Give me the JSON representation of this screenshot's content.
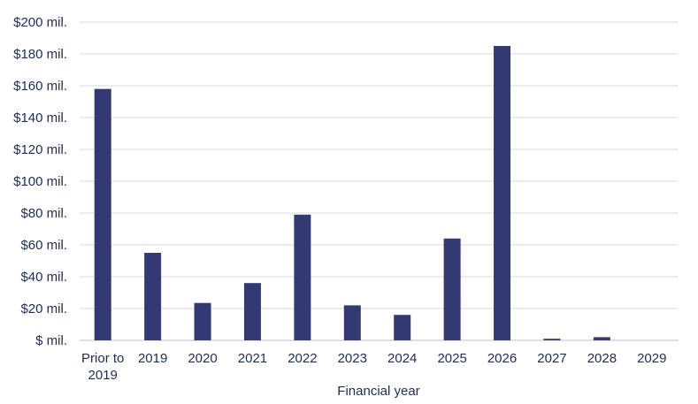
{
  "chart_data": {
    "type": "bar",
    "title": "",
    "xlabel": "Financial year",
    "ylabel": "",
    "categories": [
      [
        "Prior to",
        "2019"
      ],
      [
        "2019"
      ],
      [
        "2020"
      ],
      [
        "2021"
      ],
      [
        "2022"
      ],
      [
        "2023"
      ],
      [
        "2024"
      ],
      [
        "2025"
      ],
      [
        "2026"
      ],
      [
        "2027"
      ],
      [
        "2028"
      ],
      [
        "2029"
      ]
    ],
    "values": [
      158,
      55,
      23.5,
      36,
      79,
      22,
      16,
      64,
      185,
      1,
      2,
      0
    ],
    "ylim": [
      0,
      200
    ],
    "yticks": [
      0,
      20,
      40,
      60,
      80,
      100,
      120,
      140,
      160,
      180,
      200
    ],
    "ytick_labels": [
      "$ mil.",
      "$20 mil.",
      "$40 mil.",
      "$60 mil.",
      "$80 mil.",
      "$100 mil.",
      "$120 mil.",
      "$140 mil.",
      "$160 mil.",
      "$180 mil.",
      "$200 mil."
    ],
    "grid": true,
    "bar_color": "#333a73",
    "grid_color": "#d9d9d9"
  }
}
